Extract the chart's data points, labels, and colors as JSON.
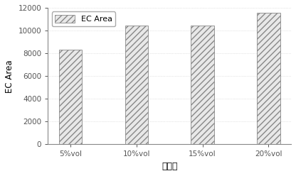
{
  "categories": [
    "5%vol",
    "10%vol",
    "15%vol",
    "20%vol"
  ],
  "values": [
    8350,
    10450,
    10450,
    11550
  ],
  "bar_color": "#e8e8e8",
  "bar_edgecolor": "#888888",
  "ylabel": "EC Area",
  "xlabel": "酒精度",
  "ylim": [
    0,
    12000
  ],
  "yticks": [
    0,
    2000,
    4000,
    6000,
    8000,
    10000,
    12000
  ],
  "legend_label": "EC Area",
  "bar_width": 0.35,
  "hatch": "////",
  "background_color": "#ffffff",
  "grid_color": "#cccccc",
  "figsize": [
    4.16,
    2.48
  ],
  "dpi": 100
}
